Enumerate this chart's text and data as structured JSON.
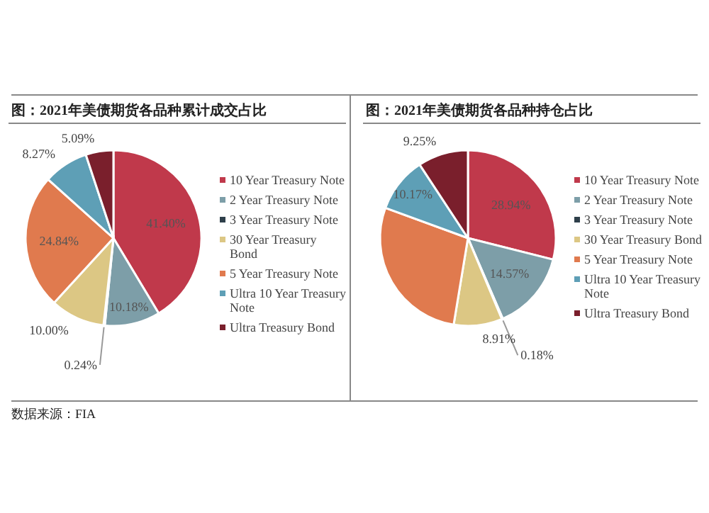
{
  "chart_data": [
    {
      "type": "pie",
      "title": "图：2021年美债期货各品种累计成交占比",
      "categories": [
        "10 Year Treasury Note",
        "2 Year Treasury Note",
        "3 Year Treasury Note",
        "30 Year Treasury Bond",
        "5 Year Treasury Note",
        "Ultra 10 Year Treasury Note",
        "Ultra Treasury Bond"
      ],
      "values": [
        41.4,
        10.18,
        0.24,
        10.0,
        24.84,
        8.27,
        5.09
      ],
      "colors": [
        "#c0394b",
        "#7d9ea8",
        "#2e3f4a",
        "#dcc784",
        "#e07a4e",
        "#5e9fb6",
        "#7a1f2c"
      ],
      "value_labels": [
        "41.40%",
        "10.18%",
        "0.24%",
        "10.00%",
        "24.84%",
        "8.27%",
        "5.09%"
      ],
      "legend": "right",
      "annotations": [
        "数据来源：FIA"
      ]
    },
    {
      "type": "pie",
      "title": "图：2021年美债期货各品种持仓占比",
      "categories": [
        "10 Year Treasury Note",
        "2 Year Treasury Note",
        "3 Year Treasury Note",
        "30 Year Treasury Bond",
        "5 Year Treasury Note",
        "Ultra 10 Year Treasury Note",
        "Ultra Treasury Bond"
      ],
      "values": [
        28.94,
        14.57,
        0.18,
        8.91,
        27.98,
        10.17,
        9.25
      ],
      "colors": [
        "#c0394b",
        "#7d9ea8",
        "#2e3f4a",
        "#dcc784",
        "#e07a4e",
        "#5e9fb6",
        "#7a1f2c"
      ],
      "value_labels": [
        "28.94%",
        "14.57%",
        "0.18%",
        "8.91%",
        null,
        "10.17%",
        "9.25%"
      ],
      "legend": "right"
    }
  ]
}
